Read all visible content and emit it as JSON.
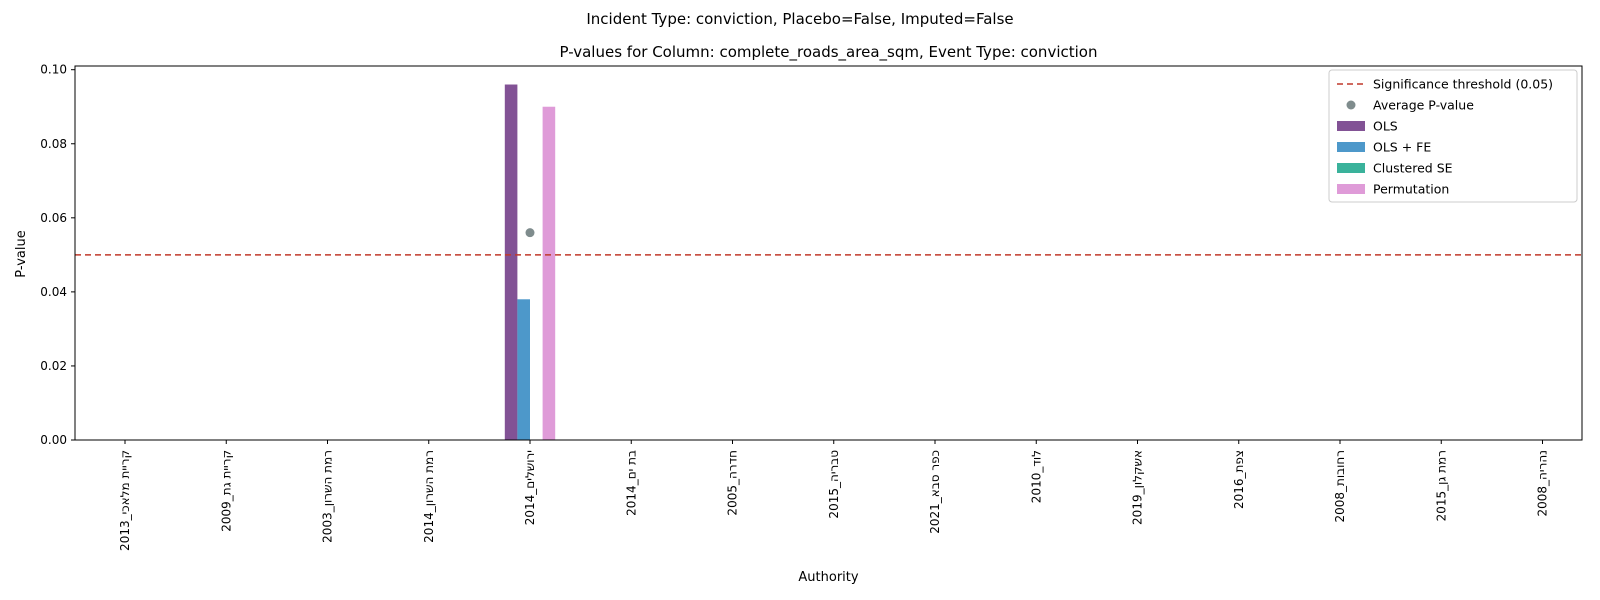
{
  "figure": {
    "suptitle": "Incident Type: conviction, Placebo=False, Imputed=False"
  },
  "chart_data": {
    "type": "bar",
    "title": "P-values for Column: complete_roads_area_sqm, Event Type: conviction",
    "xlabel": "Authority",
    "ylabel": "P-value",
    "ylim": [
      0,
      0.101
    ],
    "yticks": [
      "0.00",
      "0.02",
      "0.04",
      "0.06",
      "0.08",
      "0.10"
    ],
    "categories": [
      "קריית מלאכי_2013",
      "קריית גת_2009",
      "רמת השרון_2003",
      "רמת השרון_2014",
      "ירושלים_2014",
      "בת ים_2014",
      "חדרה_2005",
      "טבריה_2015",
      "כפר סבא_2021",
      "לוד_2010",
      "אשקלון_2019",
      "צפת_2016",
      "רחובות_2008",
      "רמת גן_2015",
      "נהריה_2008"
    ],
    "series": [
      {
        "name": "OLS",
        "color": "#6c3483",
        "values": [
          0,
          0,
          0,
          0,
          0.096,
          0,
          0,
          0,
          0,
          0,
          0,
          0,
          0,
          0,
          0
        ]
      },
      {
        "name": "OLS + FE",
        "color": "#2e86c1",
        "values": [
          0,
          0,
          0,
          0,
          0.038,
          0,
          0,
          0,
          0,
          0,
          0,
          0,
          0,
          0,
          0
        ]
      },
      {
        "name": "Clustered SE",
        "color": "#17a589",
        "values": [
          0,
          0,
          0,
          0,
          0,
          0,
          0,
          0,
          0,
          0,
          0,
          0,
          0,
          0,
          0
        ]
      },
      {
        "name": "Permutation",
        "color": "#d98ad1",
        "values": [
          0,
          0,
          0,
          0,
          0.09,
          0,
          0,
          0,
          0,
          0,
          0,
          0,
          0,
          0,
          0
        ]
      }
    ],
    "average": {
      "name": "Average P-value",
      "color": "#7f8c8d",
      "points": [
        {
          "category": "ירושלים_2014",
          "value": 0.056
        }
      ]
    },
    "threshold": {
      "name": "Significance threshold (0.05)",
      "value": 0.05,
      "color": "#c0392b"
    },
    "legend_position": "top-right",
    "grid": false
  }
}
